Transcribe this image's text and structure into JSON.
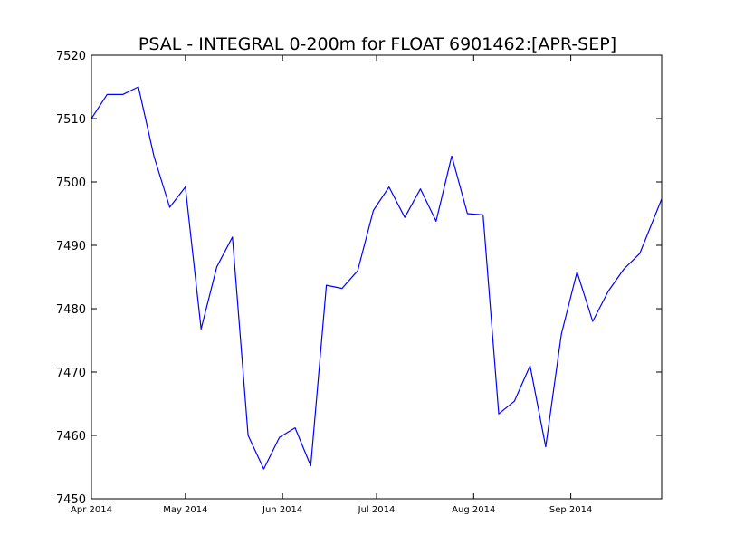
{
  "chart_data": {
    "type": "line",
    "title": "PSAL - INTEGRAL 0-200m for FLOAT 6901462:[APR-SEP]",
    "xlabel": "",
    "ylabel": "",
    "xlim": [
      "2014-04-01",
      "2014-09-30"
    ],
    "ylim": [
      7450,
      7520
    ],
    "yticks": [
      7450,
      7460,
      7470,
      7480,
      7490,
      7500,
      7510,
      7520
    ],
    "xticks": [
      {
        "date": "2014-04-01",
        "label": "Apr 2014"
      },
      {
        "date": "2014-05-01",
        "label": "May 2014"
      },
      {
        "date": "2014-06-01",
        "label": "Jun 2014"
      },
      {
        "date": "2014-07-01",
        "label": "Jul 2014"
      },
      {
        "date": "2014-08-01",
        "label": "Aug 2014"
      },
      {
        "date": "2014-09-01",
        "label": "Sep 2014"
      }
    ],
    "grid": false,
    "series": [
      {
        "color": "#0000ff",
        "x": [
          "2014-04-01",
          "2014-04-06",
          "2014-04-11",
          "2014-04-16",
          "2014-04-21",
          "2014-04-26",
          "2014-05-01",
          "2014-05-06",
          "2014-05-11",
          "2014-05-16",
          "2014-05-21",
          "2014-05-26",
          "2014-05-31",
          "2014-06-05",
          "2014-06-10",
          "2014-06-15",
          "2014-06-20",
          "2014-06-25",
          "2014-06-30",
          "2014-07-05",
          "2014-07-10",
          "2014-07-15",
          "2014-07-20",
          "2014-07-25",
          "2014-07-30",
          "2014-08-04",
          "2014-08-09",
          "2014-08-14",
          "2014-08-19",
          "2014-08-24",
          "2014-08-29",
          "2014-09-03",
          "2014-09-08",
          "2014-09-13",
          "2014-09-18",
          "2014-09-23",
          "2014-09-30"
        ],
        "y": [
          7510.0,
          7513.8,
          7513.8,
          7515.0,
          7504.0,
          7496.0,
          7499.2,
          7476.8,
          7486.6,
          7491.3,
          7460.0,
          7454.7,
          7459.7,
          7461.2,
          7455.2,
          7483.7,
          7483.2,
          7486.0,
          7495.5,
          7499.2,
          7494.4,
          7498.9,
          7493.8,
          7504.1,
          7495.0,
          7494.8,
          7463.4,
          7465.4,
          7471.0,
          7458.2,
          7476.0,
          7485.8,
          7478.0,
          7482.8,
          7486.3,
          7488.7,
          7497.3
        ]
      }
    ]
  }
}
